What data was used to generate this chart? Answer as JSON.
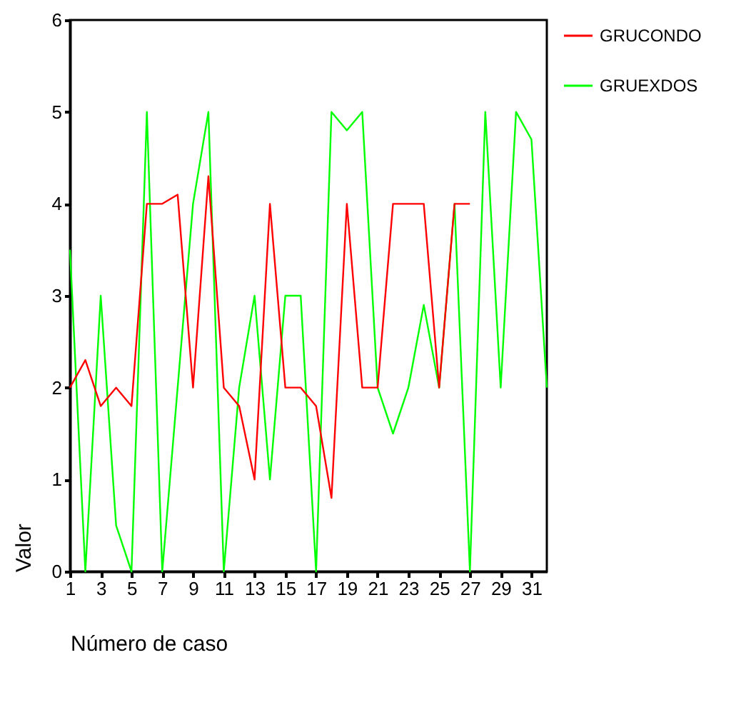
{
  "chart_data": {
    "type": "line",
    "xlabel": "Número de caso",
    "ylabel": "Valor",
    "x": [
      1,
      2,
      3,
      4,
      5,
      6,
      7,
      8,
      9,
      10,
      11,
      12,
      13,
      14,
      15,
      16,
      17,
      18,
      19,
      20,
      21,
      22,
      23,
      24,
      25,
      26,
      27,
      28,
      29,
      30,
      31,
      32
    ],
    "series": [
      {
        "name": "GRUCONDO",
        "color": "#ff0000",
        "values": [
          2.0,
          2.3,
          1.8,
          2.0,
          1.8,
          4.0,
          4.0,
          4.1,
          2.0,
          4.3,
          2.0,
          1.8,
          1.0,
          4.0,
          2.0,
          2.0,
          1.8,
          0.8,
          4.0,
          2.0,
          2.0,
          4.0,
          4.0,
          4.0,
          2.0,
          4.0,
          4.0,
          null,
          null,
          null,
          null,
          null
        ]
      },
      {
        "name": "GRUEXDOS",
        "color": "#00ff00",
        "values": [
          3.5,
          0,
          3.0,
          0.5,
          0,
          5.0,
          0,
          2.0,
          4.0,
          5.0,
          0,
          2.0,
          3.0,
          1.0,
          3.0,
          3.0,
          0,
          5.0,
          4.8,
          5.0,
          2.0,
          1.5,
          2.0,
          2.9,
          2.0,
          4.0,
          0,
          5.0,
          2.0,
          5.0,
          4.7,
          2.0
        ]
      }
    ],
    "xlim": [
      1,
      32
    ],
    "xticks": [
      1,
      3,
      5,
      7,
      9,
      11,
      13,
      15,
      17,
      19,
      21,
      23,
      25,
      27,
      29,
      31
    ],
    "ylim": [
      0,
      6
    ],
    "yticks": [
      0,
      1,
      2,
      3,
      4,
      5,
      6
    ],
    "grid": false,
    "legend": "right",
    "marker": "none",
    "line_style": "solid"
  }
}
